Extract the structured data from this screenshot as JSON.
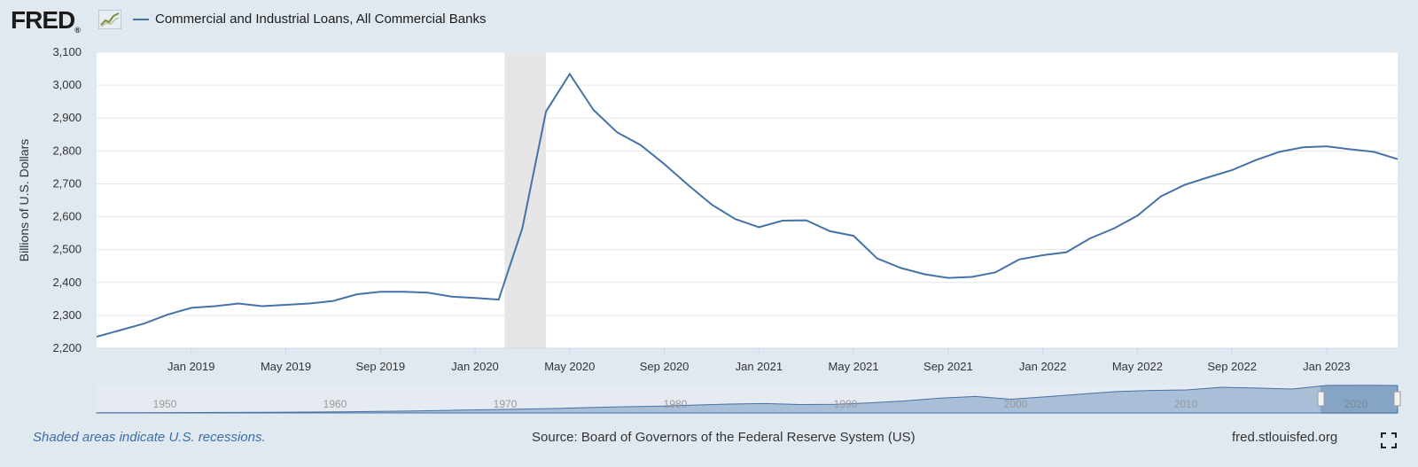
{
  "brand": {
    "logo_text": "FRED",
    "registered_mark": "®",
    "logo_icon": "chart-line-icon"
  },
  "legend": {
    "series_name": "Commercial and Industrial Loans, All Commercial Banks",
    "color": "#4572a7"
  },
  "footer": {
    "recession_note": "Shaded areas indicate U.S. recessions.",
    "source": "Source: Board of Governors of the Federal Reserve System (US)",
    "site": "fred.stlouisfed.org",
    "fullscreen_icon": "fullscreen-icon"
  },
  "navigator": {
    "year_labels": [
      "1950",
      "1960",
      "1970",
      "1980",
      "1990",
      "2000",
      "2010",
      "2020"
    ]
  },
  "chart_data": {
    "type": "line",
    "title": "Commercial and Industrial Loans, All Commercial Banks",
    "ylabel": "Billions of U.S. Dollars",
    "xlabel": "",
    "ylim": [
      2200,
      3100
    ],
    "y_ticks": [
      2200,
      2300,
      2400,
      2500,
      2600,
      2700,
      2800,
      2900,
      3000,
      3100
    ],
    "y_tick_labels": [
      "2,200",
      "2,300",
      "2,400",
      "2,500",
      "2,600",
      "2,700",
      "2,800",
      "2,900",
      "3,000",
      "3,100"
    ],
    "x_tick_labels": [
      "Jan 2019",
      "May 2019",
      "Sep 2019",
      "Jan 2020",
      "May 2020",
      "Sep 2020",
      "Jan 2021",
      "May 2021",
      "Sep 2021",
      "Jan 2022",
      "May 2022",
      "Sep 2022",
      "Jan 2023"
    ],
    "x_tick_month_index": [
      4,
      8,
      12,
      16,
      20,
      24,
      28,
      32,
      36,
      40,
      44,
      48,
      52
    ],
    "x_start": "Sep 2018",
    "x_end": "May 2023",
    "recession": {
      "start_index": 17,
      "end_index": 19,
      "color": "#e6e6e6"
    },
    "grid": true,
    "series": [
      {
        "name": "Commercial and Industrial Loans, All Commercial Banks",
        "color": "#4572a7",
        "values": [
          2235,
          2255,
          2275,
          2302,
          2323,
          2328,
          2336,
          2328,
          2332,
          2336,
          2344,
          2364,
          2372,
          2372,
          2369,
          2357,
          2353,
          2348,
          2565,
          2920,
          3034,
          2925,
          2857,
          2818,
          2760,
          2697,
          2637,
          2593,
          2568,
          2588,
          2589,
          2556,
          2542,
          2473,
          2444,
          2425,
          2414,
          2417,
          2431,
          2470,
          2483,
          2492,
          2534,
          2564,
          2603,
          2662,
          2697,
          2720,
          2742,
          2772,
          2797,
          2811,
          2814,
          2805,
          2797,
          2775
        ]
      }
    ]
  }
}
